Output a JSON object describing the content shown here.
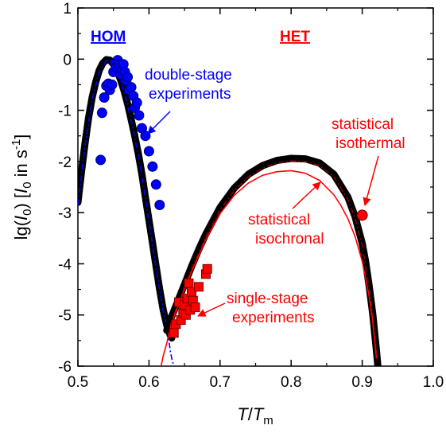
{
  "chart_data": {
    "type": "scatter",
    "title": "",
    "xlabel": {
      "main": "T",
      "slash": "/",
      "sub_main": "T",
      "sub": "m"
    },
    "ylabel": {
      "pre": "lg(",
      "var": "I",
      "var_sub": "0",
      "mid": ") [",
      "unit_var": "I",
      "unit_sub": "0",
      "unit_text": " in s",
      "unit_sup": "-1",
      "close": "]"
    },
    "xlim": [
      0.5,
      1.0
    ],
    "ylim": [
      -6,
      1
    ],
    "xticks": [
      "0.5",
      "0.6",
      "0.7",
      "0.8",
      "0.9",
      "1.0"
    ],
    "yticks": [
      "1",
      "0",
      "-1",
      "-2",
      "-3",
      "-4",
      "-5",
      "-6"
    ],
    "grid": false,
    "colors": {
      "hom": "#0000ff",
      "het": "#ff0000",
      "hom_curve": "#000000",
      "het_thin": "#ff0000"
    },
    "series": [
      {
        "kind": "curve-black-thick",
        "x": [
          0.5,
          0.505,
          0.51,
          0.515,
          0.52,
          0.525,
          0.53,
          0.535,
          0.54,
          0.545,
          0.55,
          0.555,
          0.56,
          0.565,
          0.57,
          0.575,
          0.58,
          0.585,
          0.59,
          0.595,
          0.6,
          0.605,
          0.61,
          0.615,
          0.62,
          0.625,
          0.63,
          0.632
        ],
        "y": [
          -2.8,
          -2.2,
          -1.65,
          -1.15,
          -0.75,
          -0.45,
          -0.22,
          -0.08,
          -0.01,
          -0.02,
          -0.1,
          -0.22,
          -0.4,
          -0.62,
          -0.88,
          -1.18,
          -1.5,
          -1.85,
          -2.25,
          -2.7,
          -3.15,
          -3.6,
          -4.05,
          -4.5,
          -4.9,
          -5.2,
          -5.4,
          -5.45
        ]
      },
      {
        "kind": "curve-blue-dashdot",
        "x": [
          0.5,
          0.51,
          0.52,
          0.53,
          0.54,
          0.545,
          0.55,
          0.56,
          0.57,
          0.58,
          0.59,
          0.6,
          0.61,
          0.62,
          0.625,
          0.628,
          0.63,
          0.632,
          0.634,
          0.636
        ],
        "y": [
          -2.85,
          -1.7,
          -0.8,
          -0.25,
          -0.03,
          -0.02,
          -0.1,
          -0.42,
          -0.9,
          -1.52,
          -2.27,
          -3.17,
          -4.07,
          -4.92,
          -5.25,
          -5.5,
          -5.7,
          -5.85,
          -5.95,
          -6.0
        ]
      },
      {
        "kind": "curve-black-thick",
        "x": [
          0.625,
          0.63,
          0.64,
          0.65,
          0.66,
          0.67,
          0.68,
          0.7,
          0.72,
          0.74,
          0.76,
          0.78,
          0.8,
          0.82,
          0.84,
          0.86,
          0.88,
          0.89,
          0.9,
          0.905,
          0.91,
          0.915,
          0.92,
          0.922
        ],
        "y": [
          -5.3,
          -5.1,
          -4.75,
          -4.4,
          -4.05,
          -3.72,
          -3.42,
          -2.9,
          -2.52,
          -2.25,
          -2.08,
          -1.98,
          -1.94,
          -1.95,
          -2.03,
          -2.25,
          -2.7,
          -3.08,
          -3.6,
          -3.98,
          -4.45,
          -5.0,
          -5.7,
          -6.0
        ]
      },
      {
        "kind": "curve-darkred-dashdot",
        "x": [
          0.63,
          0.64,
          0.65,
          0.66,
          0.68,
          0.7,
          0.72,
          0.74,
          0.76,
          0.78,
          0.8,
          0.82,
          0.84,
          0.86,
          0.88,
          0.89,
          0.9,
          0.91,
          0.915,
          0.92
        ],
        "y": [
          -5.2,
          -4.8,
          -4.45,
          -4.1,
          -3.47,
          -2.95,
          -2.57,
          -2.3,
          -2.13,
          -2.03,
          -1.99,
          -2.0,
          -2.08,
          -2.3,
          -2.75,
          -3.12,
          -3.64,
          -4.5,
          -5.05,
          -5.75
        ]
      },
      {
        "kind": "curve-red-thin",
        "x": [
          0.617,
          0.62,
          0.625,
          0.63,
          0.64,
          0.65,
          0.66,
          0.68,
          0.7,
          0.72,
          0.74,
          0.76,
          0.78,
          0.8,
          0.82,
          0.84,
          0.86,
          0.87,
          0.88,
          0.89,
          0.9,
          0.91,
          0.915,
          0.92
        ],
        "y": [
          -6.0,
          -5.8,
          -5.55,
          -5.25,
          -4.85,
          -4.5,
          -4.15,
          -3.53,
          -3.02,
          -2.66,
          -2.42,
          -2.27,
          -2.2,
          -2.18,
          -2.23,
          -2.37,
          -2.65,
          -2.86,
          -3.12,
          -3.47,
          -3.95,
          -4.65,
          -5.15,
          -5.85
        ]
      },
      {
        "kind": "points-blue-circle",
        "x": [
          0.532,
          0.534,
          0.537,
          0.54,
          0.543,
          0.545,
          0.548,
          0.55,
          0.552,
          0.554,
          0.556,
          0.558,
          0.56,
          0.562,
          0.564,
          0.566,
          0.568,
          0.57,
          0.572,
          0.575,
          0.578,
          0.58,
          0.583,
          0.586,
          0.59,
          0.595,
          0.6,
          0.605,
          0.61,
          0.615
        ],
        "y": [
          -1.97,
          -1.05,
          -0.75,
          -0.52,
          -0.48,
          -0.6,
          -0.5,
          -0.25,
          -0.08,
          -0.15,
          -0.02,
          -0.12,
          -0.3,
          -0.22,
          -0.1,
          -0.25,
          -0.42,
          -0.35,
          -0.6,
          -0.55,
          -0.72,
          -0.95,
          -0.85,
          -1.1,
          -1.35,
          -1.5,
          -1.8,
          -2.1,
          -2.45,
          -2.85
        ]
      },
      {
        "kind": "points-red-square",
        "x": [
          0.635,
          0.638,
          0.642,
          0.645,
          0.648,
          0.65,
          0.652,
          0.654,
          0.656,
          0.658,
          0.66,
          0.662,
          0.665,
          0.67,
          0.68,
          0.682
        ],
        "y": [
          -5.35,
          -5.18,
          -4.75,
          -5.1,
          -4.95,
          -4.8,
          -5.0,
          -4.68,
          -4.38,
          -4.9,
          -4.55,
          -4.72,
          -4.85,
          -4.45,
          -4.2,
          -4.1
        ]
      },
      {
        "kind": "point-red-circle",
        "x": [
          0.9
        ],
        "y": [
          -3.05
        ]
      }
    ],
    "annotations": {
      "hom": "HOM",
      "het": "HET",
      "double_l1": "double-stage",
      "double_l2": "experiments",
      "single_l1": "single-stage",
      "single_l2": "experiments",
      "isochronal_l1": "statistical",
      "isochronal_l2": "isochronal",
      "isothermal_l1": "statistical",
      "isothermal_l2": "isothermal"
    }
  }
}
